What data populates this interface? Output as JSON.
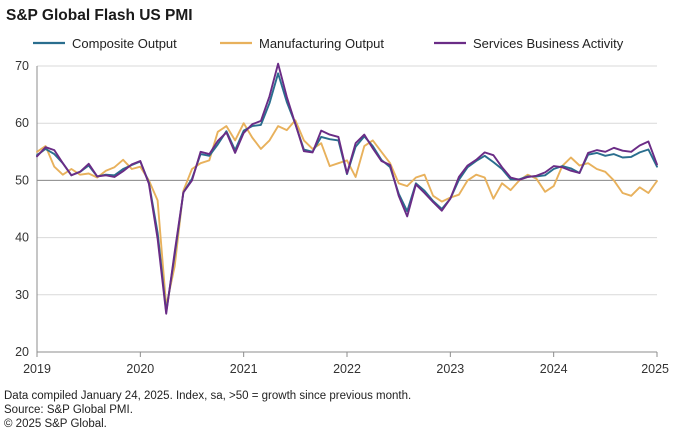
{
  "title": "S&P Global Flash US PMI",
  "footer": {
    "note": "Data compiled January 24, 2025. Index, sa, >50 = growth since previous month.",
    "source": "Source: S&P Global PMI.",
    "copyright": "© 2025 S&P Global."
  },
  "chart_data": {
    "type": "line",
    "title": "S&P Global Flash US PMI",
    "xlabel": "",
    "ylabel": "",
    "xlim": [
      2019.0,
      2025.0
    ],
    "ylim": [
      20,
      70
    ],
    "y_ticks": [
      20,
      30,
      40,
      50,
      60,
      70
    ],
    "x_ticks": [
      2019,
      2020,
      2021,
      2022,
      2023,
      2024,
      2025
    ],
    "x_tick_labels": [
      "2019",
      "2020",
      "2021",
      "2022",
      "2023",
      "2024",
      "2025"
    ],
    "reference_line": 50,
    "legend": "top",
    "grid": "horizontal",
    "series": [
      {
        "name": "Composite Output",
        "color": "#2a6e8e",
        "x": [
          2019.0,
          2019.083,
          2019.167,
          2019.25,
          2019.333,
          2019.417,
          2019.5,
          2019.583,
          2019.667,
          2019.75,
          2019.833,
          2019.917,
          2020.0,
          2020.083,
          2020.167,
          2020.25,
          2020.333,
          2020.417,
          2020.5,
          2020.583,
          2020.667,
          2020.75,
          2020.833,
          2020.917,
          2021.0,
          2021.083,
          2021.167,
          2021.25,
          2021.333,
          2021.417,
          2021.5,
          2021.583,
          2021.667,
          2021.75,
          2021.833,
          2021.917,
          2022.0,
          2022.083,
          2022.167,
          2022.25,
          2022.333,
          2022.417,
          2022.5,
          2022.583,
          2022.667,
          2022.75,
          2022.833,
          2022.917,
          2023.0,
          2023.083,
          2023.167,
          2023.25,
          2023.333,
          2023.417,
          2023.5,
          2023.583,
          2023.667,
          2023.75,
          2023.833,
          2023.917,
          2024.0,
          2024.083,
          2024.167,
          2024.25,
          2024.333,
          2024.417,
          2024.5,
          2024.583,
          2024.667,
          2024.75,
          2024.833,
          2024.917,
          2025.0
        ],
        "values": [
          54.4,
          55.5,
          54.6,
          53.0,
          50.9,
          51.5,
          52.6,
          50.7,
          51.0,
          50.9,
          52.0,
          52.7,
          53.3,
          49.6,
          40.9,
          27.0,
          37.0,
          47.9,
          50.3,
          54.6,
          54.3,
          56.3,
          58.6,
          55.3,
          58.7,
          59.5,
          59.7,
          63.5,
          68.7,
          63.7,
          59.9,
          55.4,
          55.0,
          57.6,
          57.2,
          57.0,
          51.1,
          55.9,
          57.7,
          56.0,
          53.6,
          52.3,
          47.7,
          44.6,
          49.5,
          48.2,
          46.4,
          45.0,
          46.8,
          50.1,
          52.3,
          53.4,
          54.3,
          53.2,
          52.0,
          50.2,
          50.2,
          50.7,
          50.7,
          50.9,
          52.0,
          52.5,
          52.1,
          51.3,
          54.5,
          54.8,
          54.3,
          54.6,
          54.0,
          54.1,
          54.9,
          55.4,
          52.4
        ]
      },
      {
        "name": "Manufacturing Output",
        "color": "#e8b15c",
        "x": [
          2019.0,
          2019.083,
          2019.167,
          2019.25,
          2019.333,
          2019.417,
          2019.5,
          2019.583,
          2019.667,
          2019.75,
          2019.833,
          2019.917,
          2020.0,
          2020.083,
          2020.167,
          2020.25,
          2020.333,
          2020.417,
          2020.5,
          2020.583,
          2020.667,
          2020.75,
          2020.833,
          2020.917,
          2021.0,
          2021.083,
          2021.167,
          2021.25,
          2021.333,
          2021.417,
          2021.5,
          2021.583,
          2021.667,
          2021.75,
          2021.833,
          2021.917,
          2022.0,
          2022.083,
          2022.167,
          2022.25,
          2022.333,
          2022.417,
          2022.5,
          2022.583,
          2022.667,
          2022.75,
          2022.833,
          2022.917,
          2023.0,
          2023.083,
          2023.167,
          2023.25,
          2023.333,
          2023.417,
          2023.5,
          2023.583,
          2023.667,
          2023.75,
          2023.833,
          2023.917,
          2024.0,
          2024.083,
          2024.167,
          2024.25,
          2024.333,
          2024.417,
          2024.5,
          2024.583,
          2024.667,
          2024.75,
          2024.833,
          2024.917,
          2025.0
        ],
        "values": [
          55.0,
          56.0,
          52.4,
          51.0,
          52.0,
          51.0,
          51.2,
          50.5,
          51.7,
          52.3,
          53.6,
          52.0,
          52.4,
          50.0,
          46.5,
          28.0,
          35.0,
          48.2,
          52.0,
          53.0,
          53.5,
          58.5,
          59.5,
          57.0,
          60.0,
          57.5,
          55.5,
          57.0,
          59.5,
          58.8,
          60.5,
          57.0,
          55.5,
          56.5,
          52.5,
          53.0,
          53.5,
          50.6,
          56.0,
          57.0,
          55.0,
          53.0,
          49.5,
          49.0,
          50.5,
          51.0,
          47.3,
          46.3,
          47.0,
          47.5,
          50.0,
          51.0,
          50.5,
          46.8,
          49.5,
          48.3,
          50.0,
          51.0,
          50.3,
          48.0,
          49.0,
          52.5,
          54.0,
          52.6,
          53.0,
          52.0,
          51.5,
          50.0,
          47.8,
          47.3,
          48.8,
          47.8,
          49.9
        ]
      },
      {
        "name": "Services Business Activity",
        "color": "#6a2c86",
        "x": [
          2019.0,
          2019.083,
          2019.167,
          2019.25,
          2019.333,
          2019.417,
          2019.5,
          2019.583,
          2019.667,
          2019.75,
          2019.833,
          2019.917,
          2020.0,
          2020.083,
          2020.167,
          2020.25,
          2020.333,
          2020.417,
          2020.5,
          2020.583,
          2020.667,
          2020.75,
          2020.833,
          2020.917,
          2021.0,
          2021.083,
          2021.167,
          2021.25,
          2021.333,
          2021.417,
          2021.5,
          2021.583,
          2021.667,
          2021.75,
          2021.833,
          2021.917,
          2022.0,
          2022.083,
          2022.167,
          2022.25,
          2022.333,
          2022.417,
          2022.5,
          2022.583,
          2022.667,
          2022.75,
          2022.833,
          2022.917,
          2023.0,
          2023.083,
          2023.167,
          2023.25,
          2023.333,
          2023.417,
          2023.5,
          2023.583,
          2023.667,
          2023.75,
          2023.833,
          2023.917,
          2024.0,
          2024.083,
          2024.167,
          2024.25,
          2024.333,
          2024.417,
          2024.5,
          2024.583,
          2024.667,
          2024.75,
          2024.833,
          2024.917,
          2025.0
        ],
        "values": [
          54.2,
          55.8,
          55.3,
          53.0,
          50.9,
          51.5,
          52.9,
          50.7,
          50.9,
          50.6,
          51.6,
          52.8,
          53.4,
          49.4,
          39.8,
          26.7,
          37.5,
          47.9,
          50.0,
          55.0,
          54.6,
          56.9,
          58.4,
          54.8,
          58.3,
          59.8,
          60.4,
          64.7,
          70.4,
          64.6,
          59.9,
          55.1,
          54.9,
          58.7,
          58.0,
          57.6,
          51.2,
          56.5,
          58.0,
          55.6,
          53.4,
          52.7,
          47.3,
          43.7,
          49.3,
          47.8,
          46.2,
          44.7,
          46.8,
          50.6,
          52.6,
          53.6,
          54.9,
          54.4,
          52.3,
          50.5,
          50.1,
          50.6,
          50.8,
          51.4,
          52.5,
          52.3,
          51.7,
          51.3,
          54.8,
          55.3,
          55.0,
          55.7,
          55.2,
          55.0,
          56.1,
          56.8,
          52.8
        ]
      }
    ]
  }
}
